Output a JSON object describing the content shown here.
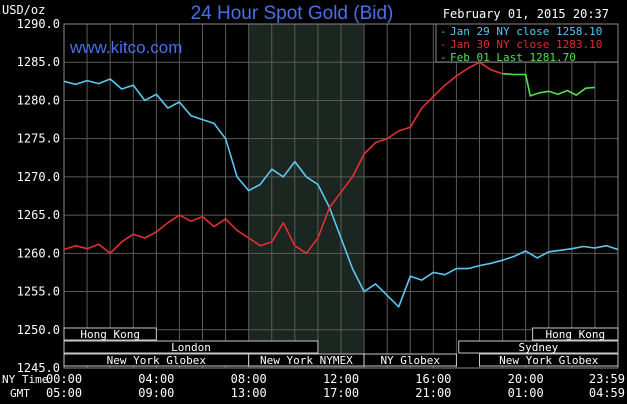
{
  "chart_data": {
    "type": "line",
    "title": "24 Hour Spot Gold (Bid)",
    "ylabel": "USD/oz",
    "timestamp": "February 01, 2015 20:37",
    "watermark": "www.kitco.com",
    "ylim": [
      1245,
      1290
    ],
    "y_ticks": [
      1290,
      1285,
      1280,
      1275,
      1270,
      1265,
      1260,
      1255,
      1250,
      1245
    ],
    "y_tick_labels": [
      "1290.0",
      "1285.0",
      "1280.0",
      "1275.0",
      "1270.0",
      "1265.0",
      "1260.0",
      "1255.0",
      "1250.0",
      "1245.0"
    ],
    "x_range_hours": [
      0,
      24
    ],
    "x_label_ny": "NY Time",
    "x_label_gmt": "GMT",
    "x_tick_hours": [
      0,
      4,
      8,
      12,
      16,
      20,
      24
    ],
    "x_ticks_ny": [
      "00:00",
      "04:00",
      "08:00",
      "12:00",
      "16:00",
      "20:00",
      "23:59"
    ],
    "x_ticks_gmt": [
      "05:00",
      "09:00",
      "13:00",
      "17:00",
      "21:00",
      "01:00",
      "04:59"
    ],
    "grid": true,
    "legend_position": "top-right",
    "legend": [
      {
        "label": "Jan 29 NY close 1258.10",
        "color": "#5bc8f0"
      },
      {
        "label": "Jan 30 NY close 1283.10",
        "color": "#e03030"
      },
      {
        "label": "Feb 01 Last 1281.70",
        "color": "#50e050"
      }
    ],
    "series": [
      {
        "name": "Jan 29",
        "color": "#5bc8f0",
        "points": [
          [
            0,
            1282.5
          ],
          [
            0.5,
            1282.1
          ],
          [
            1,
            1282.6
          ],
          [
            1.5,
            1282.2
          ],
          [
            2,
            1282.8
          ],
          [
            2.5,
            1281.5
          ],
          [
            3,
            1282.0
          ],
          [
            3.5,
            1280.0
          ],
          [
            4,
            1280.8
          ],
          [
            4.5,
            1279.0
          ],
          [
            5,
            1279.8
          ],
          [
            5.5,
            1278.0
          ],
          [
            6,
            1277.5
          ],
          [
            6.5,
            1277.0
          ],
          [
            7,
            1275.0
          ],
          [
            7.5,
            1270.0
          ],
          [
            8,
            1268.2
          ],
          [
            8.5,
            1269.0
          ],
          [
            9,
            1271.0
          ],
          [
            9.5,
            1270.0
          ],
          [
            10,
            1272.0
          ],
          [
            10.5,
            1270.0
          ],
          [
            11,
            1269.0
          ],
          [
            11.5,
            1266.0
          ],
          [
            12,
            1262.0
          ],
          [
            12.5,
            1258.0
          ],
          [
            13,
            1255.0
          ],
          [
            13.5,
            1256.0
          ],
          [
            14,
            1254.5
          ],
          [
            14.5,
            1253.0
          ],
          [
            15,
            1257.0
          ],
          [
            15.5,
            1256.5
          ],
          [
            16,
            1257.5
          ],
          [
            16.5,
            1257.2
          ],
          [
            17,
            1258.0
          ],
          [
            17.5,
            1258.0
          ],
          [
            18,
            1258.4
          ],
          [
            18.5,
            1258.7
          ],
          [
            19,
            1259.1
          ],
          [
            19.5,
            1259.6
          ],
          [
            20,
            1260.3
          ],
          [
            20.5,
            1259.4
          ],
          [
            21,
            1260.2
          ],
          [
            21.5,
            1260.4
          ],
          [
            22,
            1260.6
          ],
          [
            22.5,
            1260.9
          ],
          [
            23,
            1260.7
          ],
          [
            23.5,
            1261.0
          ],
          [
            24,
            1260.5
          ]
        ]
      },
      {
        "name": "Jan 30",
        "color": "#e03030",
        "points": [
          [
            0,
            1260.5
          ],
          [
            0.5,
            1261.0
          ],
          [
            1,
            1260.6
          ],
          [
            1.5,
            1261.2
          ],
          [
            2,
            1260.0
          ],
          [
            2.5,
            1261.5
          ],
          [
            3,
            1262.5
          ],
          [
            3.5,
            1262.0
          ],
          [
            4,
            1262.8
          ],
          [
            4.5,
            1264.0
          ],
          [
            5,
            1265.0
          ],
          [
            5.5,
            1264.2
          ],
          [
            6,
            1264.8
          ],
          [
            6.5,
            1263.5
          ],
          [
            7,
            1264.5
          ],
          [
            7.5,
            1263.0
          ],
          [
            8,
            1262.0
          ],
          [
            8.5,
            1261.0
          ],
          [
            9,
            1261.5
          ],
          [
            9.5,
            1264.0
          ],
          [
            10,
            1261.0
          ],
          [
            10.5,
            1260.0
          ],
          [
            11,
            1262.0
          ],
          [
            11.5,
            1266.0
          ],
          [
            12,
            1268.0
          ],
          [
            12.5,
            1270.0
          ],
          [
            13,
            1273.0
          ],
          [
            13.5,
            1274.5
          ],
          [
            14,
            1275.0
          ],
          [
            14.5,
            1276.0
          ],
          [
            15,
            1276.5
          ],
          [
            15.5,
            1279.0
          ],
          [
            16,
            1280.5
          ],
          [
            16.5,
            1282.0
          ],
          [
            17,
            1283.2
          ],
          [
            17.5,
            1284.2
          ],
          [
            18,
            1285.0
          ],
          [
            18.5,
            1284.0
          ],
          [
            19,
            1283.5
          ]
        ]
      },
      {
        "name": "Feb 01",
        "color": "#50e050",
        "points": [
          [
            19,
            1283.5
          ],
          [
            19.5,
            1283.4
          ],
          [
            20,
            1283.4
          ],
          [
            20.2,
            1280.6
          ],
          [
            20.6,
            1281.0
          ],
          [
            21,
            1281.2
          ],
          [
            21.4,
            1280.8
          ],
          [
            21.8,
            1281.3
          ],
          [
            22.2,
            1280.7
          ],
          [
            22.6,
            1281.6
          ],
          [
            23,
            1281.7
          ]
        ]
      }
    ],
    "shaded_region_hours": [
      8,
      13
    ],
    "markets": {
      "row1": [
        {
          "label": "Hong Kong",
          "start": 0,
          "end": 4
        },
        {
          "label": "Hong Kong",
          "start": 20.3,
          "end": 24
        }
      ],
      "row2": [
        {
          "label": "London",
          "start": 0,
          "end": 11
        },
        {
          "label": "Sydney",
          "start": 17.1,
          "end": 24
        }
      ],
      "row3": [
        {
          "label": "New York Globex",
          "start": 0,
          "end": 8
        },
        {
          "label": "New York NYMEX",
          "start": 8,
          "end": 13
        },
        {
          "label": "NY Globex",
          "start": 13,
          "end": 17
        },
        {
          "label": "New York Globex",
          "start": 18,
          "end": 24
        }
      ]
    }
  }
}
